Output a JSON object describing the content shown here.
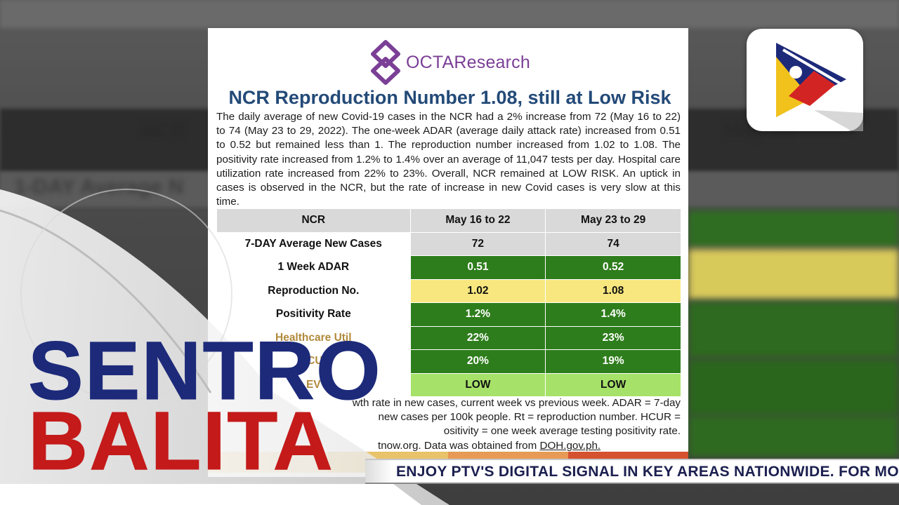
{
  "logo": {
    "name": "OCTAResearch"
  },
  "report": {
    "title": "NCR Reproduction Number 1.08, still at Low Risk",
    "paragraph": "The daily average of new Covid-19 cases in the NCR had a 2% increase from 72 (May 16 to 22) to 74 (May 23 to 29, 2022). The one-week ADAR (average daily attack rate) increased from 0.51 to 0.52 but remained less than 1. The reproduction number increased from 1.02 to 1.08. The positivity rate increased from 1.2% to 1.4% over an average of 11,047 tests per day. Hospital care utilization rate increased from 22% to 23%. Overall, NCR remained at LOW RISK. An uptick in cases is observed in the NCR, but the rate of increase in new Covid cases is very slow at this time."
  },
  "table": {
    "headers": [
      "NCR",
      "May 16 to 22",
      "May 23 to 29"
    ],
    "rows": [
      {
        "label": "7-DAY Average New Cases",
        "v1": "72",
        "v2": "74",
        "color": "g-light"
      },
      {
        "label": "1 Week ADAR",
        "v1": "0.51",
        "v2": "0.52",
        "color": "g-dark"
      },
      {
        "label": "Reproduction No.",
        "v1": "1.02",
        "v2": "1.08",
        "color": "yellow"
      },
      {
        "label": "Positivity Rate",
        "v1": "1.2%",
        "v2": "1.4%",
        "color": "g-dark"
      },
      {
        "label": "Healthcare Util",
        "v1": "22%",
        "v2": "23%",
        "color": "g-dark"
      },
      {
        "label": "ICU",
        "v1": "20%",
        "v2": "19%",
        "color": "g-dark"
      },
      {
        "label": "EV",
        "v1": "LOW",
        "v2": "LOW",
        "color": "lime"
      }
    ]
  },
  "footnote": {
    "line1": "wth rate in new cases, current week vs previous week. ADAR = 7-day",
    "line2": "new cases per 100k people. Rt = reproduction number. HCUR =",
    "line3": "ositivity = one week average testing positivity rate.",
    "line4": "tnow.org. Data was obtained from",
    "link": "DOH.gov.ph."
  },
  "overlay": {
    "show_line1": "SENTRO",
    "show_line2": "BALITA",
    "ticker": "ENJOY PTV'S DIGITAL SIGNAL IN KEY AREAS NATIONWIDE. FOR MO"
  },
  "colors": {
    "brand_purple": "#7b3f96",
    "title_blue": "#234a78",
    "sentro_blue": "#1d2a7a",
    "balita_red": "#c41a1a"
  }
}
